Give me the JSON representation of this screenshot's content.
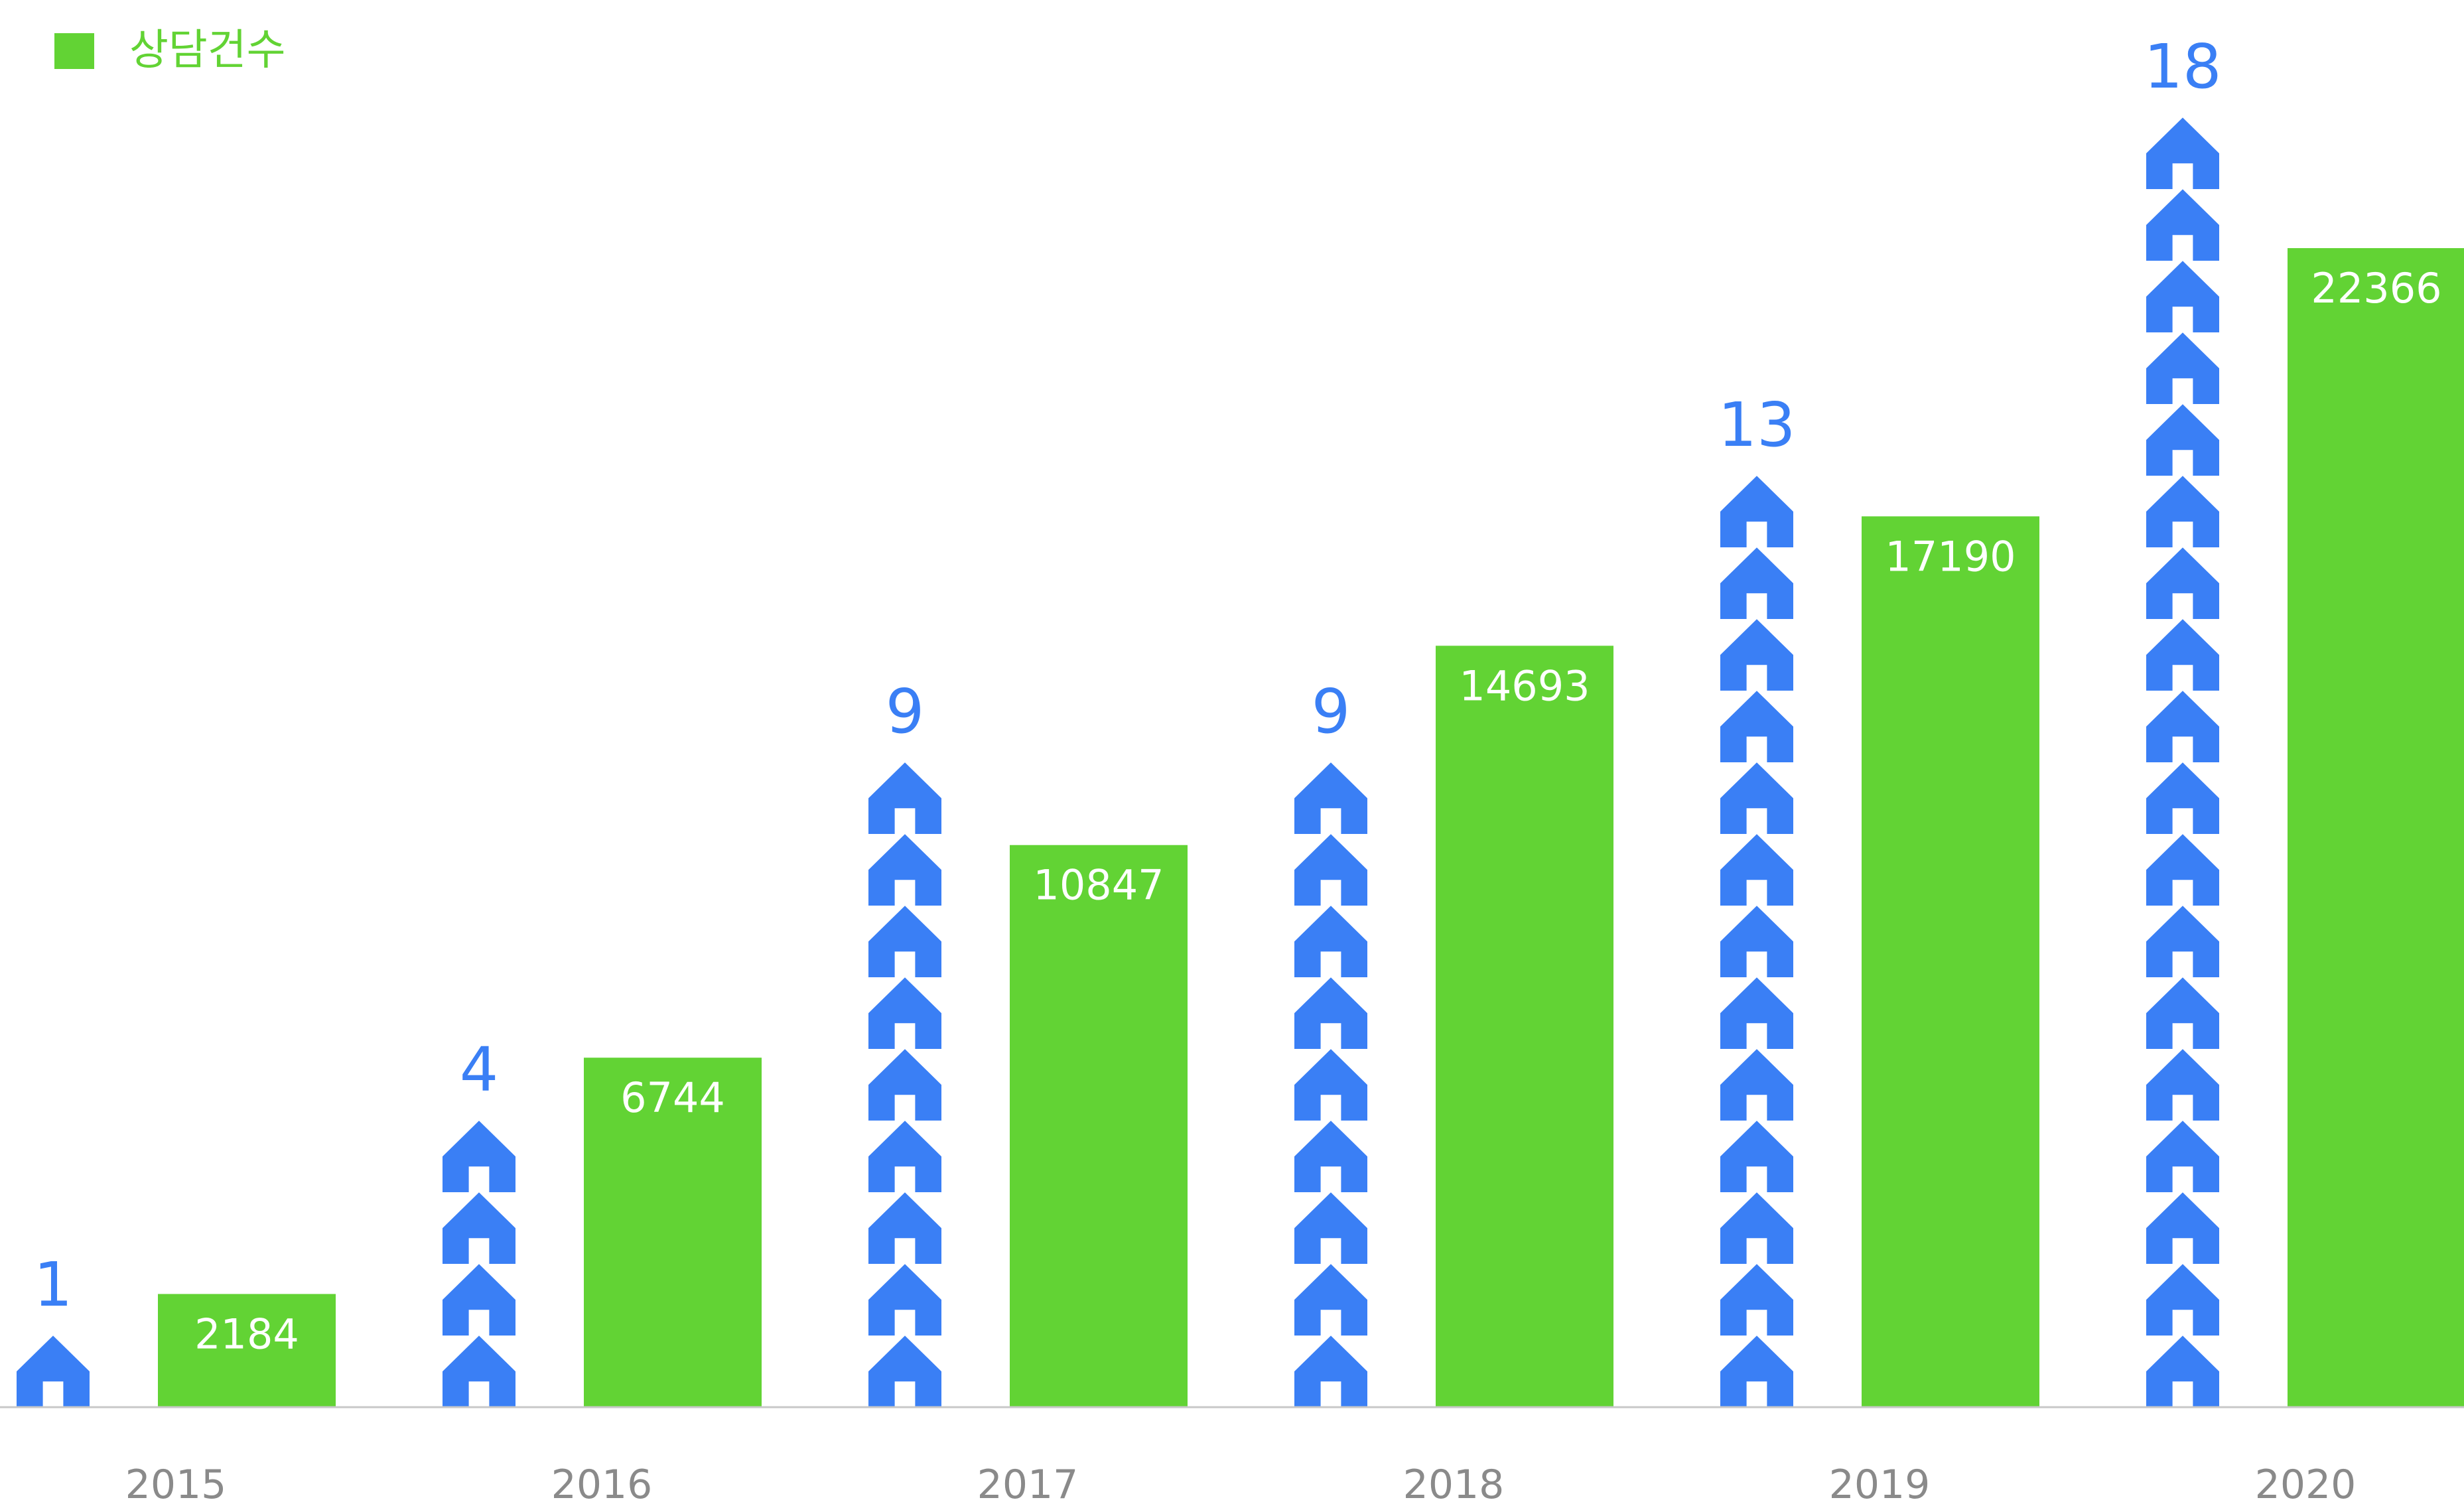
{
  "legend": {
    "label": "상담건수",
    "color": "#62D334",
    "placement": "top-left"
  },
  "colors": {
    "bar": "#62D334",
    "icon": "#3A7FF5",
    "count_label": "#3A7FF5",
    "bar_label": "#FFFFFF",
    "axis": "#C8C8C8",
    "year_label": "#8A8A8A"
  },
  "icon": {
    "name": "house-icon"
  },
  "chart_data": {
    "type": "bar",
    "categories": [
      "2015",
      "2016",
      "2017",
      "2018",
      "2019",
      "2020"
    ],
    "series": [
      {
        "name": "상담건수",
        "kind": "bar",
        "values": [
          2184,
          6744,
          10847,
          14693,
          17190,
          22366
        ],
        "value_labels": [
          "2184",
          "6744",
          "10847",
          "14693",
          "17190",
          "22366"
        ]
      },
      {
        "kind": "icon-stack",
        "icon": "house-icon",
        "values": [
          1,
          4,
          9,
          9,
          13,
          18
        ],
        "value_labels": [
          "1",
          "4",
          "9",
          "9",
          "13",
          "18"
        ]
      }
    ],
    "title": "",
    "xlabel": "",
    "ylabel": "",
    "ylim": [
      0,
      24600
    ],
    "grid": false,
    "legend_placement": "top-left"
  }
}
